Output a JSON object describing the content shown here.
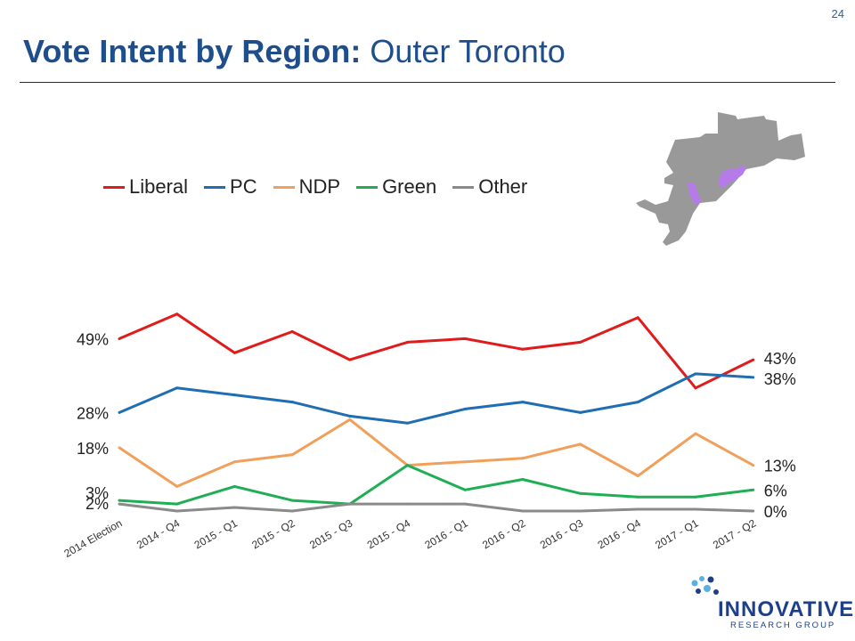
{
  "page_number": "24",
  "title": {
    "bold": "Vote Intent by Region:",
    "regular": "Outer Toronto"
  },
  "logo": {
    "main": "INNOVATIVE",
    "sub": "RESEARCH GROUP"
  },
  "map": {
    "region_color": "#999999",
    "highlight_color": "#b57be8"
  },
  "chart_data": {
    "type": "line",
    "categories": [
      "2014 Election",
      "2014 - Q4",
      "2015 - Q1",
      "2015 - Q2",
      "2015 - Q3",
      "2015 - Q4",
      "2016 - Q1",
      "2016 - Q2",
      "2016 - Q3",
      "2016 - Q4",
      "2017 - Q1",
      "2017 - Q2"
    ],
    "ylim": [
      0,
      60
    ],
    "grid": false,
    "legend_position": "top-left",
    "series": [
      {
        "name": "Liberal",
        "color": "#e01b1b",
        "values": [
          49,
          56,
          45,
          51,
          43,
          48,
          49,
          46,
          48,
          55,
          35,
          43
        ],
        "start_label": "49%",
        "end_label": "43%"
      },
      {
        "name": "PC",
        "color": "#1f6db3",
        "values": [
          28,
          35,
          33,
          31,
          27,
          25,
          29,
          31,
          28,
          31,
          39,
          38
        ],
        "start_label": "28%",
        "end_label": "38%"
      },
      {
        "name": "NDP",
        "color": "#f0a05a",
        "values": [
          18,
          7,
          14,
          16,
          26,
          13,
          14,
          15,
          19,
          10,
          22,
          13
        ],
        "start_label": "18%",
        "end_label": "13%"
      },
      {
        "name": "Green",
        "color": "#1fae54",
        "values": [
          3,
          2,
          7,
          3,
          2,
          13,
          6,
          9,
          5,
          4,
          4,
          6
        ],
        "start_label": "3%",
        "end_label": "6%"
      },
      {
        "name": "Other",
        "color": "#8a8a8a",
        "values": [
          2,
          0,
          1,
          0,
          2,
          2,
          2,
          0,
          0,
          0.5,
          0.5,
          0
        ],
        "start_label": "2%",
        "end_label": "0%"
      }
    ]
  }
}
